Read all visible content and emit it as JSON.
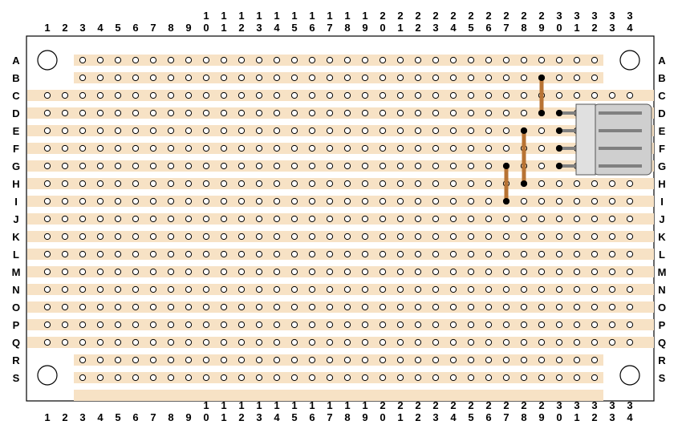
{
  "board": {
    "columns": [
      "1",
      "2",
      "3",
      "4",
      "5",
      "6",
      "7",
      "8",
      "9",
      "10",
      "11",
      "12",
      "13",
      "14",
      "15",
      "16",
      "17",
      "18",
      "19",
      "20",
      "21",
      "22",
      "23",
      "24",
      "25",
      "26",
      "27",
      "28",
      "29",
      "30",
      "31",
      "32",
      "33",
      "34"
    ],
    "rows": [
      "A",
      "B",
      "C",
      "D",
      "E",
      "F",
      "G",
      "H",
      "I",
      "J",
      "K",
      "L",
      "M",
      "N",
      "O",
      "P",
      "Q",
      "R",
      "S"
    ],
    "short_rows": [
      "A",
      "B",
      "R",
      "S"
    ],
    "short_row_span": [
      3,
      32
    ],
    "extra_strip_below_S": true
  },
  "wires": [
    {
      "col": 29,
      "from_row": "B",
      "to_row": "D"
    },
    {
      "col": 28,
      "from_row": "E",
      "to_row": "H"
    },
    {
      "col": 27,
      "from_row": "G",
      "to_row": "I"
    }
  ],
  "header_connector": {
    "pins": 4,
    "col": 30,
    "rows": [
      "D",
      "E",
      "F",
      "G"
    ]
  },
  "colors": {
    "board": "#ffffff",
    "outline": "#000000",
    "strip": "#f7e2c5",
    "hole": "#ffffff",
    "wire": "#b87333",
    "connector_body": "#cfcfcf",
    "connector_pin": "#808080"
  }
}
